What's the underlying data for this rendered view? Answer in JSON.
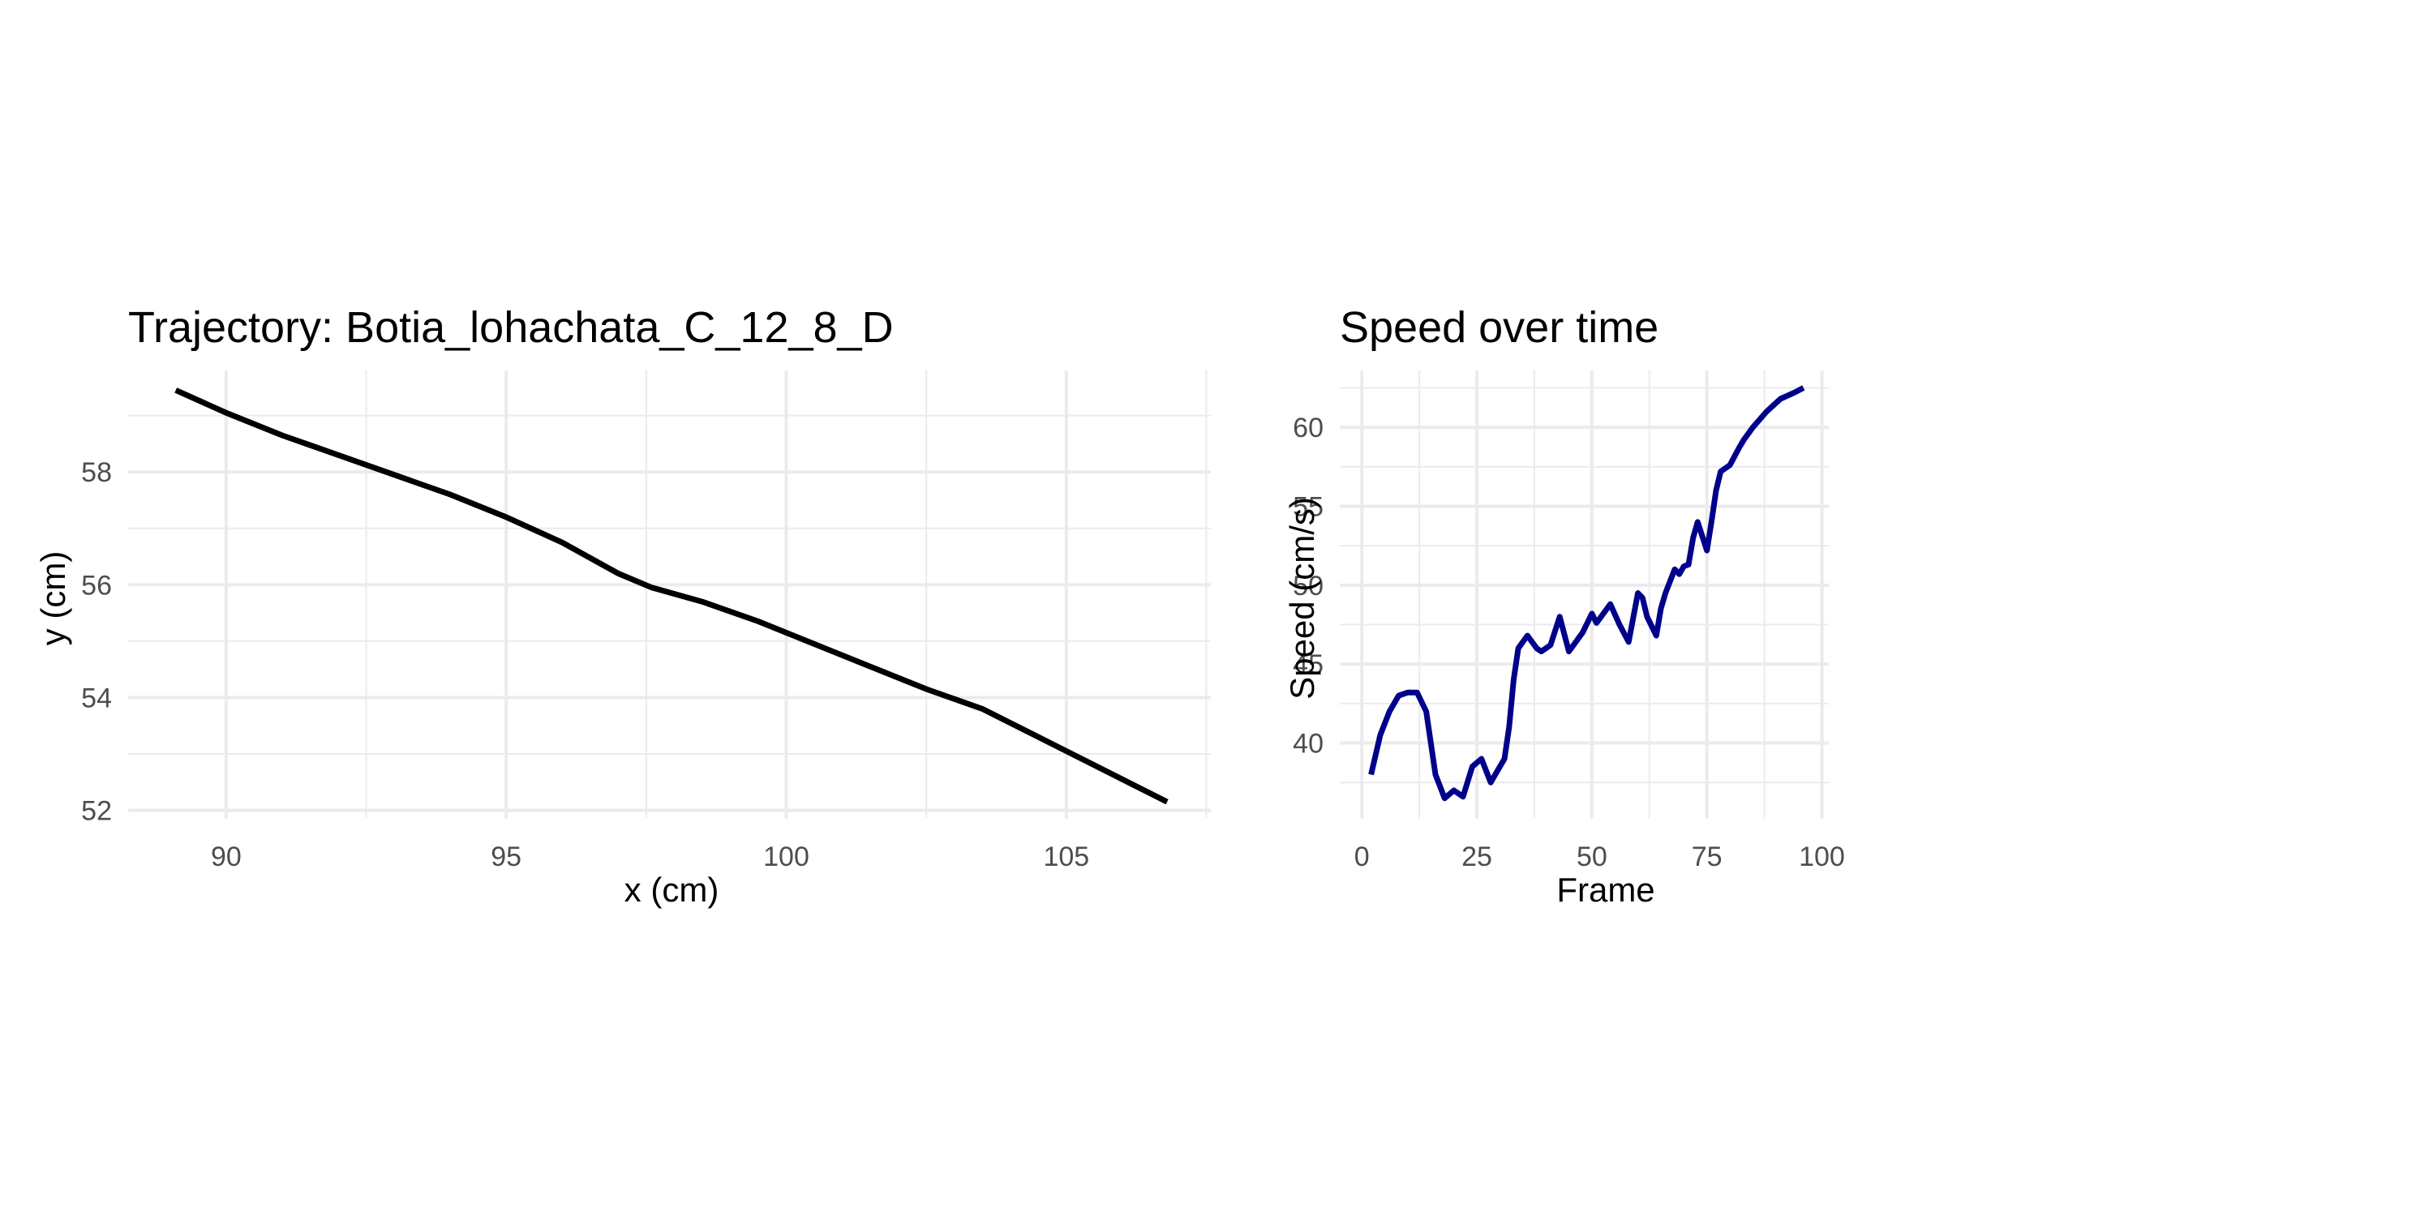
{
  "chart_data": [
    {
      "type": "line",
      "title": "Trajectory: Botia_lohachata_C_12_8_D",
      "xlabel": "x (cm)",
      "ylabel": "y (cm)",
      "xlim": [
        88.25,
        107.58
      ],
      "ylim": [
        51.85,
        59.8
      ],
      "xticks": [
        90,
        95,
        100,
        105
      ],
      "yticks": [
        52,
        54,
        56,
        58
      ],
      "grid": true,
      "series": [
        {
          "color": "#000000",
          "x": [
            89.1,
            90.0,
            91.0,
            92.0,
            93.0,
            94.0,
            95.0,
            96.0,
            97.0,
            97.6,
            98.5,
            99.5,
            100.5,
            101.5,
            102.5,
            103.5,
            104.5,
            105.5,
            106.8
          ],
          "y": [
            59.45,
            59.05,
            58.65,
            58.3,
            57.95,
            57.6,
            57.2,
            56.75,
            56.2,
            55.95,
            55.7,
            55.35,
            54.95,
            54.55,
            54.15,
            53.8,
            53.3,
            52.8,
            52.15
          ]
        }
      ]
    },
    {
      "type": "line",
      "title": "Speed over time",
      "xlabel": "Frame",
      "ylabel": "Speed (cm/s)",
      "xlim": [
        -4.8,
        101.5
      ],
      "ylim": [
        35.2,
        63.6
      ],
      "xticks": [
        0,
        25,
        50,
        75,
        100
      ],
      "yticks": [
        40,
        45,
        50,
        55,
        60
      ],
      "grid": true,
      "series": [
        {
          "color": "#00008B",
          "x": [
            2,
            4,
            6,
            8,
            10,
            12,
            14,
            16,
            18,
            20,
            22,
            24,
            26,
            28,
            29,
            31,
            32,
            33,
            34,
            36,
            38,
            39,
            41,
            43,
            45,
            46,
            48,
            50,
            51,
            52,
            54,
            56,
            58,
            60,
            61,
            62,
            64,
            65,
            66,
            68,
            69,
            70,
            71,
            72,
            73,
            75,
            76,
            77,
            78,
            80,
            82,
            83,
            85,
            88,
            91,
            94,
            96
          ],
          "y": [
            38,
            40.5,
            42,
            43,
            43.2,
            43.2,
            42,
            38,
            36.5,
            37,
            36.6,
            38.5,
            39,
            37.5,
            38,
            39,
            41,
            44,
            46,
            46.8,
            46,
            45.8,
            46.2,
            48,
            45.8,
            46.2,
            47,
            48.2,
            47.6,
            48,
            48.8,
            47.5,
            46.4,
            49.5,
            49.2,
            48,
            46.8,
            48.5,
            49.5,
            51,
            50.7,
            51.2,
            51.3,
            53,
            54,
            52.2,
            54,
            56,
            57.2,
            57.6,
            58.7,
            59.2,
            60,
            61,
            61.8,
            62.2,
            62.5
          ]
        }
      ]
    }
  ]
}
